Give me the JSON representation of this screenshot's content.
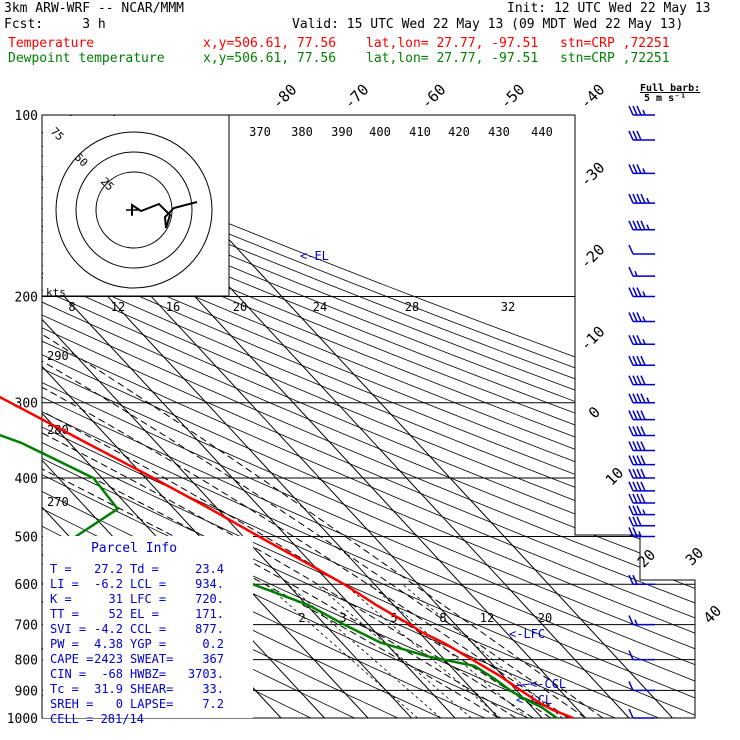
{
  "header": {
    "model": "3km ARW-WRF -- NCAR/MMM",
    "init": "Init: 12 UTC Wed 22 May 13",
    "fcst": "Fcst:     3 h",
    "valid": "Valid: 15 UTC Wed 22 May 13 (09 MDT Wed 22 May 13)",
    "temp_label": "Temperature",
    "dew_label": "Dewpoint temperature",
    "xy_temp": "x,y=506.61, 77.56",
    "xy_dew": "x,y=506.61, 77.56",
    "latlon_temp": "lat,lon= 27.77, -97.51",
    "latlon_dew": "lat,lon= 27.77, -97.51",
    "stn_temp": "stn=CRP ,72251",
    "stn_dew": "stn=CRP ,72251"
  },
  "barb_legend": {
    "line1": "Full barb:",
    "line2": "5 m s⁻¹"
  },
  "colors": {
    "temperature": "#ff0000",
    "dewpoint": "#008000",
    "annot": "#0000cc",
    "grid": "#000000"
  },
  "chart_data": {
    "type": "line",
    "chart_kind": "skew-T log-p",
    "pressure_ticks": [
      "100",
      "200",
      "300",
      "400",
      "500",
      "600",
      "700",
      "800",
      "900",
      "1000"
    ],
    "pressure_range_hPa": [
      100,
      1000
    ],
    "isotherm_labels": [
      "-80",
      "-70",
      "-60",
      "-50",
      "-40",
      "-30",
      "-20",
      "-10",
      "0",
      "10",
      "20",
      "30",
      "40"
    ],
    "theta_labels_top": [
      "370",
      "380",
      "390",
      "400",
      "410",
      "420",
      "430",
      "440"
    ],
    "mixing_ratio_labels": [
      "2",
      "3",
      "5",
      "8",
      "12",
      "20"
    ],
    "hodograph": {
      "unit_label": "kts",
      "ring_labels": [
        "25",
        "50",
        "75"
      ],
      "speed_labels": [
        "8",
        "12",
        "16",
        "20",
        "24",
        "28",
        "32"
      ],
      "inset_labels": [
        "290",
        "280",
        "270"
      ]
    },
    "level_labels": {
      "el": "<-EL",
      "lfc": "<-LFC",
      "ccl": "<-CCL",
      "lcl": "<-LCL"
    },
    "series": [
      {
        "name": "Temperature",
        "color": "#ff0000",
        "points": [
          [
            1000,
            27.2
          ],
          [
            970,
            24.2
          ],
          [
            940,
            22.5
          ],
          [
            900,
            21.0
          ],
          [
            850,
            19.2
          ],
          [
            800,
            16.4
          ],
          [
            750,
            13.4
          ],
          [
            720,
            10.6
          ],
          [
            700,
            9.6
          ],
          [
            650,
            6.0
          ],
          [
            600,
            3.0
          ],
          [
            550,
            -1.4
          ],
          [
            500,
            -6.4
          ],
          [
            450,
            -11.7
          ],
          [
            400,
            -18.2
          ],
          [
            350,
            -26.0
          ],
          [
            300,
            -35.0
          ],
          [
            250,
            -45.6
          ],
          [
            220,
            -53.2
          ],
          [
            200,
            -58.6
          ],
          [
            180,
            -63.8
          ],
          [
            160,
            -67.0
          ],
          [
            140,
            -68.8
          ],
          [
            120,
            -69.6
          ],
          [
            100,
            -71.0
          ]
        ]
      },
      {
        "name": "Dewpoint temperature",
        "color": "#008000",
        "points": [
          [
            1000,
            23.4
          ],
          [
            960,
            22.2
          ],
          [
            930,
            20.0
          ],
          [
            900,
            18.6
          ],
          [
            860,
            17.4
          ],
          [
            820,
            15.6
          ],
          [
            790,
            6.8
          ],
          [
            750,
            -1.0
          ],
          [
            700,
            -5.6
          ],
          [
            650,
            -9.6
          ],
          [
            600,
            -18.0
          ],
          [
            550,
            -32.0
          ],
          [
            500,
            -48.5
          ],
          [
            450,
            -33.0
          ],
          [
            400,
            -32.0
          ],
          [
            350,
            -41.0
          ],
          [
            300,
            -58.0
          ],
          [
            280,
            -69.0
          ],
          [
            250,
            -67.0
          ],
          [
            220,
            -66.0
          ],
          [
            200,
            -72.0
          ],
          [
            180,
            -78.0
          ],
          [
            150,
            -85.0
          ],
          [
            130,
            -94.0
          ],
          [
            120,
            -100.0
          ],
          [
            100,
            -101.0
          ]
        ]
      }
    ],
    "wind_barbs_kt": [
      {
        "p": 100,
        "spd": 35
      },
      {
        "p": 110,
        "spd": 30
      },
      {
        "p": 125,
        "spd": 35
      },
      {
        "p": 140,
        "spd": 45
      },
      {
        "p": 155,
        "spd": 45
      },
      {
        "p": 170,
        "spd": 10
      },
      {
        "p": 185,
        "spd": 15
      },
      {
        "p": 200,
        "spd": 35
      },
      {
        "p": 220,
        "spd": 35
      },
      {
        "p": 240,
        "spd": 35
      },
      {
        "p": 260,
        "spd": 40
      },
      {
        "p": 280,
        "spd": 40
      },
      {
        "p": 300,
        "spd": 45
      },
      {
        "p": 320,
        "spd": 40
      },
      {
        "p": 340,
        "spd": 40
      },
      {
        "p": 360,
        "spd": 40
      },
      {
        "p": 380,
        "spd": 40
      },
      {
        "p": 400,
        "spd": 40
      },
      {
        "p": 420,
        "spd": 40
      },
      {
        "p": 440,
        "spd": 40
      },
      {
        "p": 460,
        "spd": 35
      },
      {
        "p": 480,
        "spd": 30
      },
      {
        "p": 500,
        "spd": 25
      },
      {
        "p": 600,
        "spd": 20
      },
      {
        "p": 700,
        "spd": 15
      },
      {
        "p": 800,
        "spd": 10
      },
      {
        "p": 900,
        "spd": 10
      },
      {
        "p": 1000,
        "spd": 10
      }
    ],
    "parcel_info": {
      "title": "Parcel Info",
      "rows": [
        [
          "T  =",
          "27.2",
          "Td =",
          "23.4"
        ],
        [
          "LI =",
          "-6.2",
          "LCL =",
          "934."
        ],
        [
          "K  =",
          "31",
          "LFC =",
          "720."
        ],
        [
          "TT =",
          "52",
          "EL =",
          "171."
        ],
        [
          "SVI =",
          "-4.2",
          "CCL =",
          "877."
        ],
        [
          "PW =",
          "4.38",
          "YGP =",
          "0.2"
        ],
        [
          "CAPE =",
          "2423",
          "SWEAT=",
          "367"
        ],
        [
          "CIN =",
          "-68",
          "HWBZ=",
          "3703."
        ],
        [
          "Tc =",
          "31.9",
          "SHEAR=",
          "33."
        ],
        [
          "SREH =",
          "0",
          "LAPSE=",
          "7.2"
        ]
      ],
      "cell": "CELL = 281/14"
    }
  }
}
